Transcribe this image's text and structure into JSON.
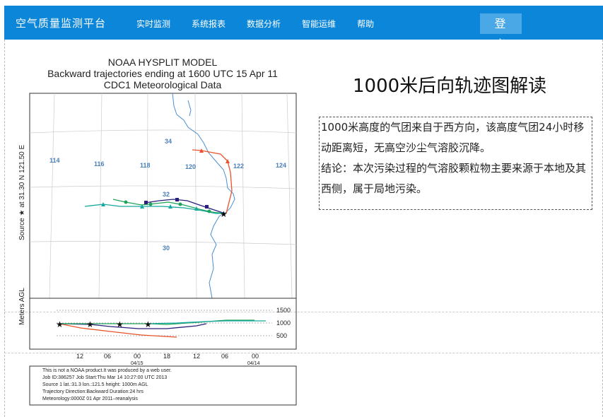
{
  "header": {
    "brand": "空气质量监测平台",
    "nav": [
      "实时监测",
      "系统报表",
      "数据分析",
      "智能运维",
      "帮助"
    ],
    "logout": "登 出"
  },
  "figure": {
    "title1": "NOAA HYSPLIT MODEL",
    "title2": "Backward trajectories ending at 1600 UTC 15 Apr 11",
    "title3": "CDC1 Meteorological Data",
    "y_label_source": "Source ★ at  31.30 N 121.50 E",
    "y_label_height": "Meters AGL",
    "lon_labels": [
      "114",
      "116",
      "118",
      "120",
      "122",
      "124"
    ],
    "lat_labels": [
      "34",
      "32",
      "30"
    ],
    "height_ticks": [
      "1500",
      "1000",
      "500"
    ],
    "time_ticks": [
      "12",
      "06",
      "00",
      "18",
      "12",
      "06",
      "00"
    ],
    "date_ticks": [
      "04/15",
      "04/14"
    ],
    "info_lines": [
      "This is not a NOAA product.It was produced by a web user.",
      "Job ID:386257          Job Start:Thu Mar 14 10:27:00 UTC 2013",
      "Source 1      lat.:31.3     lon.:121.5     height: 1000m AGL",
      "Trajectory Direction:Backward      Duration:24  hrs",
      "Meteorology:0000Z 01 Apr 2011–reanalysis"
    ]
  },
  "side": {
    "title": "1000米后向轨迹图解读",
    "paragraph1": "1000米高度的气团来自于西方向，该高度气团24小时移动距离短，无高空沙尘气溶胶沉降。",
    "paragraph2": "结论：本次污染过程的气溶胶颗粒物主要来源于本地及其西侧，属于局地污染。"
  },
  "colors": {
    "header_bg": "#0c86d8",
    "logout_bg": "#4aa8e6",
    "traj_red": "#e8532a",
    "traj_navy": "#2a1f7a",
    "traj_green": "#1ea35a",
    "traj_teal": "#16a7a0",
    "coast": "#4a8fd0"
  }
}
